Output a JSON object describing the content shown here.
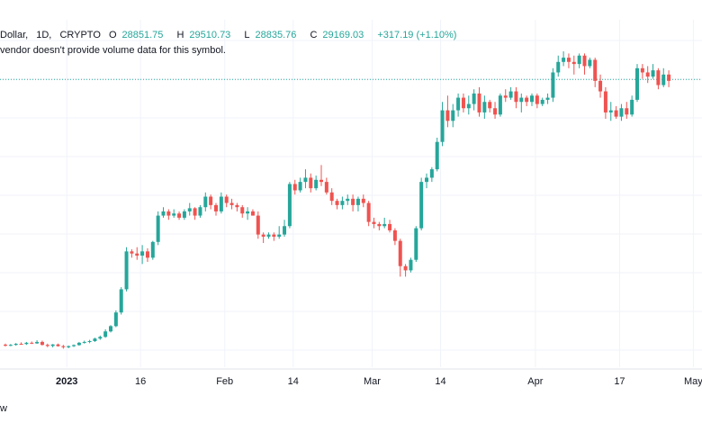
{
  "legend": {
    "symbol": "Dollar,",
    "interval": "1D,",
    "exchange": "CRYPTO",
    "open_label": "O",
    "open": "28851.75",
    "high_label": "H",
    "high": "29510.73",
    "low_label": "L",
    "low": "28835.76",
    "close_label": "C",
    "close": "29169.03",
    "change": "+317.19 (+1.10%)",
    "volume_note": "vendor doesn't provide volume data for this symbol."
  },
  "footer": {
    "text": "w"
  },
  "colors": {
    "up": "#26a69a",
    "down": "#ef5350",
    "grid": "#f0f3fa",
    "price_line": "#26a69a"
  },
  "chart_data": {
    "type": "candlestick",
    "x_tick_labels": [
      {
        "label": "2023",
        "bold": true,
        "index": 12
      },
      {
        "label": "16",
        "bold": false,
        "index": 26
      },
      {
        "label": "Feb",
        "bold": false,
        "index": 42
      },
      {
        "label": "14",
        "bold": false,
        "index": 55
      },
      {
        "label": "Mar",
        "bold": false,
        "index": 70
      },
      {
        "label": "14",
        "bold": false,
        "index": 83
      },
      {
        "label": "Apr",
        "bold": false,
        "index": 101
      },
      {
        "label": "17",
        "bold": false,
        "index": 117
      },
      {
        "label": "May",
        "bold": false,
        "index": 131
      }
    ],
    "ylim": [
      15500,
      32000
    ],
    "current_price": 29169.03,
    "candles": [
      [
        16570,
        16620,
        16480,
        16540
      ],
      [
        16540,
        16600,
        16500,
        16560
      ],
      [
        16560,
        16650,
        16520,
        16610
      ],
      [
        16610,
        16680,
        16570,
        16600
      ],
      [
        16600,
        16700,
        16560,
        16660
      ],
      [
        16660,
        16720,
        16600,
        16630
      ],
      [
        16630,
        16780,
        16610,
        16700
      ],
      [
        16700,
        16760,
        16530,
        16560
      ],
      [
        16560,
        16620,
        16450,
        16510
      ],
      [
        16510,
        16600,
        16440,
        16580
      ],
      [
        16580,
        16620,
        16480,
        16500
      ],
      [
        16500,
        16560,
        16380,
        16450
      ],
      [
        16450,
        16530,
        16400,
        16500
      ],
      [
        16500,
        16580,
        16460,
        16550
      ],
      [
        16550,
        16700,
        16520,
        16660
      ],
      [
        16660,
        16760,
        16620,
        16700
      ],
      [
        16700,
        16800,
        16640,
        16740
      ],
      [
        16740,
        16900,
        16700,
        16860
      ],
      [
        16860,
        17000,
        16800,
        16940
      ],
      [
        16940,
        17300,
        16900,
        17200
      ],
      [
        17200,
        17500,
        17150,
        17450
      ],
      [
        17450,
        18200,
        17400,
        18100
      ],
      [
        18100,
        19300,
        18000,
        19200
      ],
      [
        19200,
        21200,
        19100,
        21000
      ],
      [
        21000,
        21100,
        20700,
        20900
      ],
      [
        20900,
        21200,
        20600,
        20800
      ],
      [
        20800,
        21300,
        20400,
        21000
      ],
      [
        21000,
        21150,
        20500,
        20700
      ],
      [
        20700,
        21500,
        20600,
        21450
      ],
      [
        21450,
        22900,
        21300,
        22700
      ],
      [
        22700,
        23100,
        22600,
        22900
      ],
      [
        22900,
        23000,
        22500,
        22700
      ],
      [
        22700,
        23000,
        22600,
        22800
      ],
      [
        22800,
        22900,
        22500,
        22600
      ],
      [
        22600,
        23000,
        22500,
        22900
      ],
      [
        22900,
        23300,
        22700,
        23050
      ],
      [
        23050,
        23100,
        22500,
        22700
      ],
      [
        22700,
        23200,
        22600,
        23100
      ],
      [
        23100,
        23800,
        22900,
        23600
      ],
      [
        23600,
        23700,
        23000,
        23200
      ],
      [
        23200,
        23300,
        22700,
        22900
      ],
      [
        22900,
        23800,
        22800,
        23600
      ],
      [
        23600,
        23700,
        23100,
        23300
      ],
      [
        23300,
        23500,
        23000,
        23200
      ],
      [
        23200,
        23300,
        22900,
        23100
      ],
      [
        23100,
        23200,
        22600,
        22800
      ],
      [
        22800,
        23100,
        22500,
        22900
      ],
      [
        22900,
        23000,
        22700,
        22700
      ],
      [
        22700,
        22900,
        21600,
        21800
      ],
      [
        21800,
        21900,
        21400,
        21700
      ],
      [
        21700,
        21900,
        21600,
        21800
      ],
      [
        21800,
        21900,
        21500,
        21700
      ],
      [
        21700,
        22200,
        21600,
        21800
      ],
      [
        21800,
        22500,
        21700,
        22200
      ],
      [
        22200,
        24300,
        22100,
        24200
      ],
      [
        24200,
        24400,
        23700,
        23900
      ],
      [
        23900,
        24500,
        23800,
        24300
      ],
      [
        24300,
        24900,
        24000,
        24500
      ],
      [
        24500,
        24700,
        23800,
        24000
      ],
      [
        24000,
        24600,
        23900,
        24400
      ],
      [
        24400,
        25100,
        24100,
        24300
      ],
      [
        24300,
        24500,
        23700,
        23800
      ],
      [
        23800,
        24000,
        23200,
        23400
      ],
      [
        23400,
        23500,
        23000,
        23200
      ],
      [
        23200,
        23600,
        23000,
        23400
      ],
      [
        23400,
        23700,
        23200,
        23500
      ],
      [
        23500,
        23700,
        22900,
        23200
      ],
      [
        23200,
        23600,
        22900,
        23500
      ],
      [
        23500,
        23700,
        23100,
        23300
      ],
      [
        23300,
        23400,
        22200,
        22400
      ],
      [
        22400,
        22600,
        22100,
        22300
      ],
      [
        22300,
        22400,
        22000,
        22200
      ],
      [
        22200,
        22600,
        22100,
        22300
      ],
      [
        22300,
        22500,
        21900,
        22000
      ],
      [
        22000,
        22100,
        21300,
        21500
      ],
      [
        21500,
        21600,
        19800,
        20300
      ],
      [
        20300,
        20400,
        19800,
        20100
      ],
      [
        20100,
        20700,
        20000,
        20600
      ],
      [
        20600,
        22200,
        20500,
        22100
      ],
      [
        22100,
        24500,
        22000,
        24300
      ],
      [
        24300,
        24700,
        24000,
        24500
      ],
      [
        24500,
        25000,
        24300,
        24900
      ],
      [
        24900,
        26400,
        24800,
        26200
      ],
      [
        26200,
        28100,
        26000,
        27700
      ],
      [
        27700,
        28400,
        26900,
        27200
      ],
      [
        27200,
        28000,
        26900,
        27700
      ],
      [
        27700,
        28500,
        27400,
        28300
      ],
      [
        28300,
        28500,
        27600,
        27800
      ],
      [
        27800,
        28400,
        27500,
        28000
      ],
      [
        28000,
        28700,
        27700,
        28500
      ],
      [
        28500,
        28800,
        27400,
        27600
      ],
      [
        27600,
        28400,
        27300,
        28100
      ],
      [
        28100,
        28200,
        27600,
        27800
      ],
      [
        27800,
        28100,
        27300,
        27500
      ],
      [
        27500,
        28500,
        27400,
        28400
      ],
      [
        28400,
        28700,
        28100,
        28300
      ],
      [
        28300,
        28800,
        28200,
        28600
      ],
      [
        28600,
        28800,
        27800,
        28100
      ],
      [
        28100,
        28500,
        27600,
        28300
      ],
      [
        28300,
        28400,
        27900,
        28100
      ],
      [
        28100,
        28500,
        27900,
        28400
      ],
      [
        28400,
        28500,
        27800,
        28000
      ],
      [
        28000,
        28300,
        27900,
        28200
      ],
      [
        28200,
        28500,
        28000,
        28300
      ],
      [
        28300,
        29700,
        28100,
        29500
      ],
      [
        29500,
        30300,
        29300,
        30000
      ],
      [
        30000,
        30500,
        29800,
        30200
      ],
      [
        30200,
        30400,
        29700,
        30000
      ],
      [
        30000,
        30300,
        29400,
        29900
      ],
      [
        29900,
        30400,
        29700,
        30300
      ],
      [
        30300,
        30400,
        29400,
        29800
      ],
      [
        29800,
        30200,
        29700,
        30100
      ],
      [
        30100,
        30200,
        28800,
        29100
      ],
      [
        29100,
        29400,
        28300,
        28600
      ],
      [
        28600,
        28800,
        27300,
        27600
      ],
      [
        27600,
        28100,
        27200,
        27700
      ],
      [
        27700,
        27900,
        27300,
        27400
      ],
      [
        27400,
        28000,
        27200,
        27800
      ],
      [
        27800,
        28100,
        27300,
        27500
      ],
      [
        27500,
        28400,
        27400,
        28200
      ],
      [
        28200,
        29900,
        28100,
        29700
      ],
      [
        29700,
        29900,
        29200,
        29500
      ],
      [
        29500,
        29800,
        29000,
        29300
      ],
      [
        29300,
        29900,
        29200,
        29600
      ],
      [
        29600,
        29700,
        28700,
        28900
      ],
      [
        28900,
        29700,
        28800,
        29400
      ],
      [
        29400,
        29600,
        28800,
        29100
      ]
    ]
  }
}
